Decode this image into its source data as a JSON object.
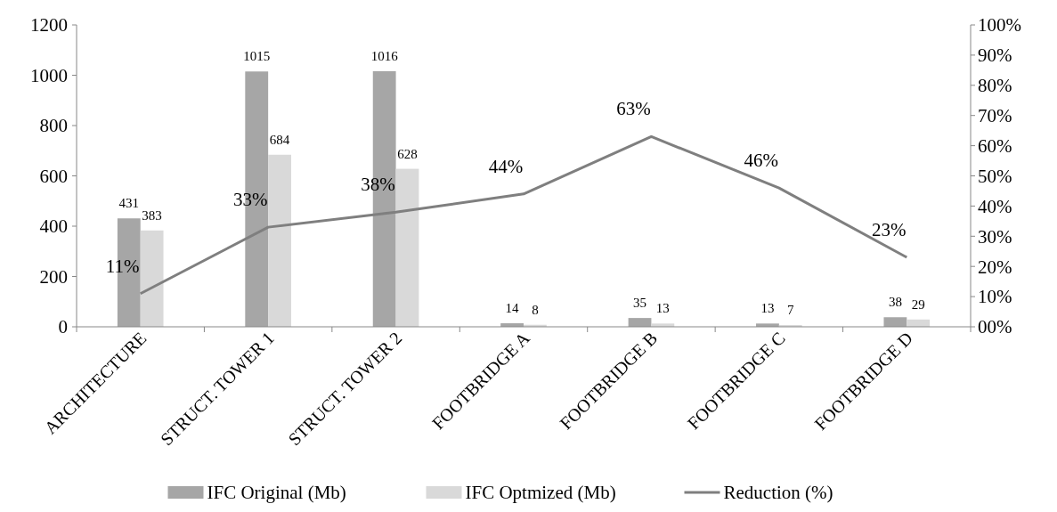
{
  "chart_data": {
    "type": "bar",
    "categories": [
      "ARCHITECTURE",
      "STRUCT. TOWER 1",
      "STRUCT. TOWER 2",
      "FOOTBRIDGE A",
      "FOOTBRIDGE B",
      "FOOTBRIDGE C",
      "FOOTBRIDGE D"
    ],
    "series": [
      {
        "name": "IFC Original (Mb)",
        "color": "#a6a6a6",
        "values": [
          431,
          1015,
          1016,
          14,
          35,
          13,
          38
        ],
        "value_labels": [
          "431",
          "1015",
          "1016",
          "14",
          "35",
          "13",
          "38"
        ]
      },
      {
        "name": "IFC Optmized (Mb)",
        "color": "#d9d9d9",
        "values": [
          383,
          684,
          628,
          8,
          13,
          7,
          29
        ],
        "value_labels": [
          "383",
          "684",
          "628",
          "8",
          "13",
          "7",
          "29"
        ]
      },
      {
        "name": "Reduction (%)",
        "type": "line",
        "axis": "y2",
        "color": "#7f7f7f",
        "values": [
          11,
          33,
          38,
          44,
          63,
          46,
          23
        ],
        "value_labels": [
          "11%",
          "33%",
          "38%",
          "44%",
          "63%",
          "46%",
          "23%"
        ]
      }
    ],
    "ylim": [
      0,
      1200
    ],
    "yticks": [
      0,
      200,
      400,
      600,
      800,
      1000,
      1200
    ],
    "y2lim": [
      0,
      100
    ],
    "y2ticks": [
      {
        "value": 0,
        "label": "00%"
      },
      {
        "value": 10,
        "label": "10%"
      },
      {
        "value": 20,
        "label": "20%"
      },
      {
        "value": 30,
        "label": "30%"
      },
      {
        "value": 40,
        "label": "40%"
      },
      {
        "value": 50,
        "label": "50%"
      },
      {
        "value": 60,
        "label": "60%"
      },
      {
        "value": 70,
        "label": "70%"
      },
      {
        "value": 80,
        "label": "80%"
      },
      {
        "value": 90,
        "label": "90%"
      },
      {
        "value": 100,
        "label": "100%"
      }
    ],
    "legend": "bottom",
    "grid": false,
    "marker": "none",
    "line_style": "solid"
  }
}
